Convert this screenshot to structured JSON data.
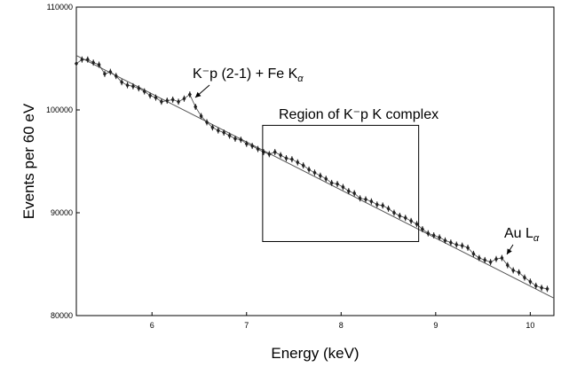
{
  "chart_data": {
    "type": "scatter",
    "xlabel": "Energy (keV)",
    "ylabel": "Events per 60 eV",
    "xlim": [
      5.2,
      10.25
    ],
    "ylim": [
      80000,
      110000
    ],
    "x_ticks": [
      6,
      7,
      8,
      9,
      10
    ],
    "x_tick_labels": [
      "6",
      "7",
      "8",
      "9",
      "10"
    ],
    "y_ticks": [
      80000,
      90000,
      100000,
      110000
    ],
    "y_tick_labels": [
      "80000",
      "90000",
      "100000",
      "110000"
    ],
    "grid": false,
    "legend": "none",
    "colors": {
      "points": "#222222",
      "fit": "#555555",
      "axes": "#000000"
    },
    "fit_line": {
      "x": [
        5.2,
        10.25
      ],
      "y": [
        105300,
        81700
      ]
    },
    "series": [
      {
        "x": [
          5.2,
          5.26,
          5.32,
          5.38,
          5.44,
          5.5,
          5.56,
          5.62,
          5.68,
          5.74,
          5.8,
          5.86,
          5.92,
          5.98,
          6.04,
          6.1,
          6.16,
          6.22,
          6.28,
          6.34,
          6.4,
          6.46,
          6.52,
          6.58,
          6.64,
          6.7,
          6.76,
          6.82,
          6.88,
          6.94,
          7.0,
          7.06,
          7.12,
          7.18,
          7.24,
          7.3,
          7.36,
          7.42,
          7.48,
          7.54,
          7.6,
          7.66,
          7.72,
          7.78,
          7.84,
          7.9,
          7.96,
          8.02,
          8.08,
          8.14,
          8.2,
          8.26,
          8.32,
          8.38,
          8.44,
          8.5,
          8.56,
          8.62,
          8.68,
          8.74,
          8.8,
          8.86,
          8.92,
          8.98,
          9.04,
          9.1,
          9.16,
          9.22,
          9.28,
          9.34,
          9.4,
          9.46,
          9.52,
          9.58,
          9.64,
          9.7,
          9.76,
          9.82,
          9.88,
          9.94,
          10.0,
          10.06,
          10.12,
          10.18
        ],
        "y": [
          104500,
          104900,
          104900,
          104600,
          104400,
          103500,
          103700,
          103300,
          102700,
          102400,
          102300,
          102100,
          101800,
          101400,
          101200,
          100800,
          100900,
          101000,
          100800,
          101100,
          101500,
          100300,
          99400,
          98800,
          98300,
          98000,
          97800,
          97500,
          97200,
          97100,
          96700,
          96500,
          96200,
          95900,
          95700,
          95900,
          95600,
          95300,
          95200,
          94900,
          94600,
          94200,
          93900,
          93600,
          93300,
          92900,
          92800,
          92500,
          92100,
          91900,
          91400,
          91300,
          91100,
          90800,
          90700,
          90400,
          90000,
          89700,
          89500,
          89200,
          88900,
          88400,
          88000,
          87800,
          87600,
          87300,
          87100,
          86900,
          86800,
          86600,
          86000,
          85600,
          85400,
          85200,
          85500,
          85600,
          84900,
          84400,
          84200,
          83700,
          83300,
          82900,
          82700,
          82600
        ],
        "error": [
          300,
          300,
          300,
          300,
          300,
          300,
          300,
          300,
          300,
          300,
          300,
          300,
          300,
          300,
          300,
          300,
          300,
          300,
          300,
          300,
          300,
          300,
          300,
          300,
          300,
          300,
          300,
          300,
          300,
          300,
          300,
          300,
          300,
          300,
          300,
          300,
          300,
          300,
          300,
          300,
          300,
          300,
          300,
          300,
          300,
          300,
          300,
          300,
          300,
          300,
          300,
          300,
          300,
          300,
          300,
          300,
          300,
          300,
          300,
          300,
          300,
          300,
          300,
          300,
          300,
          300,
          300,
          300,
          300,
          300,
          300,
          300,
          300,
          300,
          300,
          300,
          300,
          300,
          300,
          300,
          300,
          300,
          300,
          300
        ]
      }
    ],
    "annotations": [
      {
        "text": "K⁻p (2-1) + Fe K",
        "subscript": "α",
        "at": [
          6.45,
          101300
        ]
      },
      {
        "text": "Region of K⁻p K complex",
        "box": {
          "x": [
            7.17,
            8.82
          ],
          "y": [
            87200,
            98500
          ]
        }
      },
      {
        "text": "Au L",
        "subscript": "α",
        "at": [
          9.8,
          85300
        ]
      }
    ]
  }
}
